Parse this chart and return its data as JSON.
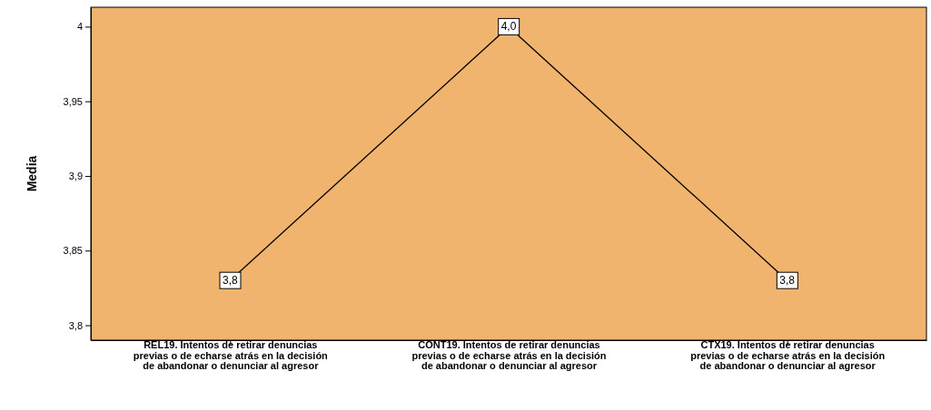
{
  "chart_data": {
    "type": "line",
    "ylabel": "Media",
    "categories": [
      "REL19. Intentos de retirar denuncias previas o de echarse atrás en la decisión de abandonar o denunciar al agresor",
      "CONT19. Intentos de retirar denuncias previas o de echarse atrás en la decisión de abandonar o denunciar al agresor",
      "CTX19. Intentos de retirar denuncias previas o de echarse atrás en la decisión de abandonar o denunciar al agresor"
    ],
    "series": [
      {
        "color": "#000000",
        "values": [
          3.83,
          4.0,
          3.83
        ],
        "value_labels": [
          "3,8",
          "4,0",
          "3,8"
        ]
      }
    ],
    "ylim": [
      3.79,
      4.013
    ],
    "yticks": [
      {
        "value": 3.8,
        "label": "3,8"
      },
      {
        "value": 3.85,
        "label": "3,85"
      },
      {
        "value": 3.9,
        "label": "3,9"
      },
      {
        "value": 3.95,
        "label": "3,95"
      },
      4
    ],
    "marker": "square",
    "line_style": "solid"
  }
}
